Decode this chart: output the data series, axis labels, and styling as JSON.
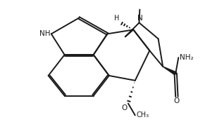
{
  "background": "#ffffff",
  "line_color": "#1a1a1a",
  "line_width": 1.4,
  "figsize": [
    3.08,
    1.84
  ],
  "dpi": 100,
  "xlim": [
    -0.5,
    8.5
  ],
  "ylim": [
    -1.0,
    5.5
  ]
}
